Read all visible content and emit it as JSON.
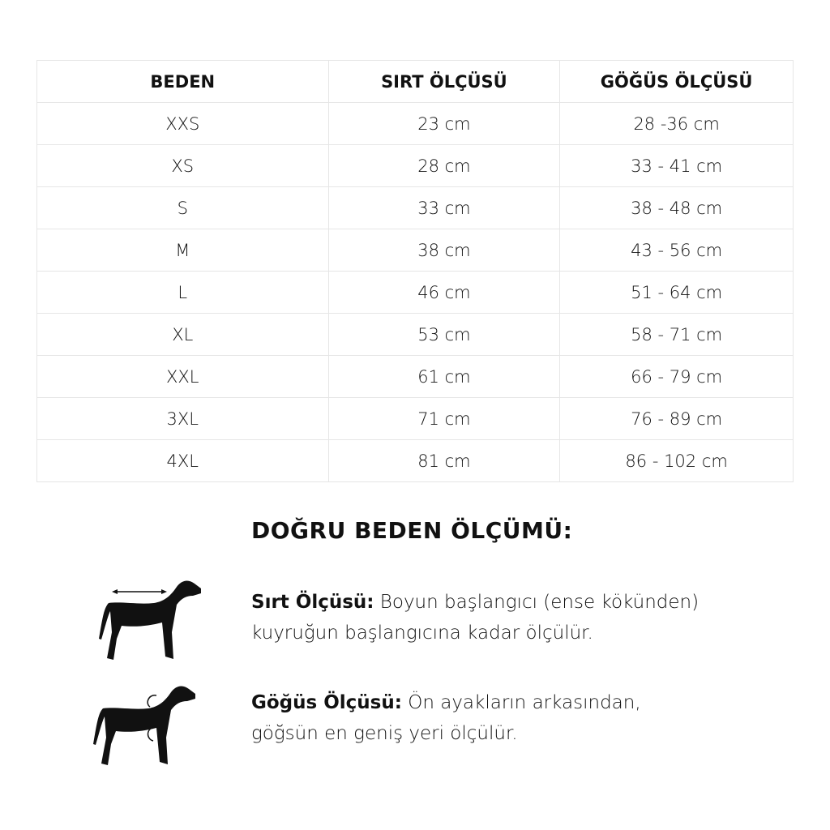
{
  "table": {
    "headers": [
      "BEDEN",
      "SIRT ÖLÇÜSÜ",
      "GÖĞÜS ÖLÇÜSÜ"
    ],
    "rows": [
      [
        "XXS",
        "23 cm",
        "28 -36 cm"
      ],
      [
        "XS",
        "28 cm",
        "33 - 41 cm"
      ],
      [
        "S",
        "33 cm",
        "38 - 48 cm"
      ],
      [
        "M",
        "38 cm",
        "43 - 56 cm"
      ],
      [
        "L",
        "46 cm",
        "51 - 64 cm"
      ],
      [
        "XL",
        "53 cm",
        "58 - 71 cm"
      ],
      [
        "XXL",
        "61 cm",
        "66 - 79 cm"
      ],
      [
        "3XL",
        "71 cm",
        "76 - 89 cm"
      ],
      [
        "4XL",
        "81 cm",
        "86 - 102 cm"
      ]
    ]
  },
  "guide": {
    "title": "DOĞRU BEDEN ÖLÇÜMÜ:",
    "items": [
      {
        "label": "Sırt Ölçüsü:",
        "line1": " Boyun başlangıcı (ense kökünden)",
        "line2": "kuyruğun başlangıcına kadar ölçülür.",
        "icon": "dog-back-measure-icon"
      },
      {
        "label": "Göğüs Ölçüsü:",
        "line1": " Ön ayakların arkasından,",
        "line2": "göğsün en geniş yeri ölçülür.",
        "icon": "dog-chest-measure-icon"
      }
    ]
  }
}
